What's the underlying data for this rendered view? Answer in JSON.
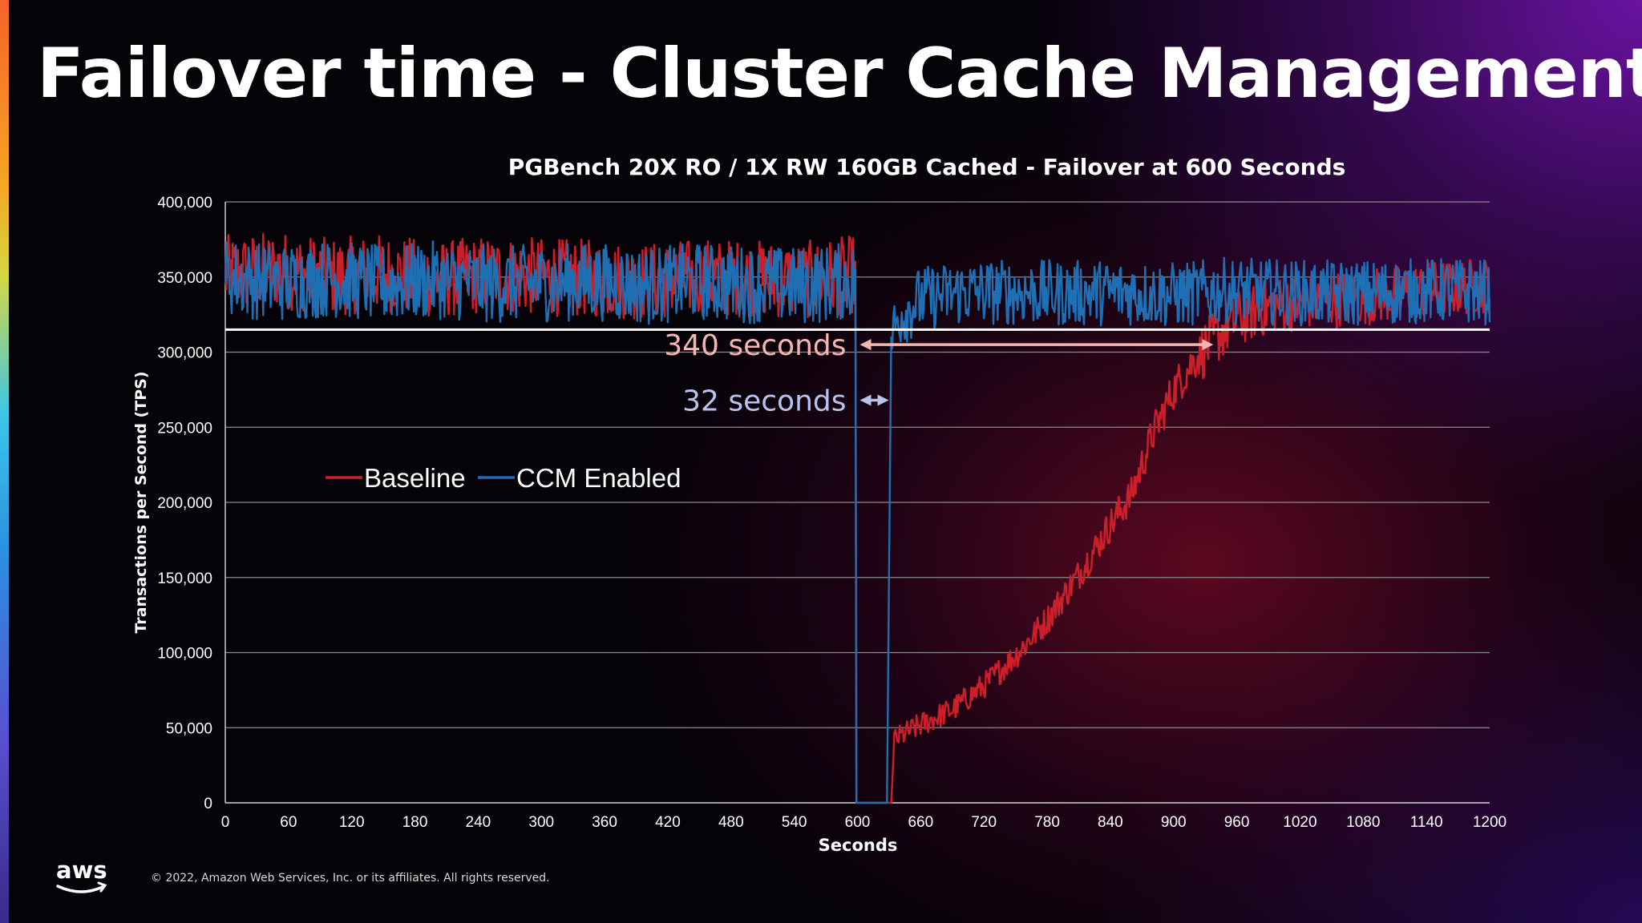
{
  "slide": {
    "title": "Failover time - Cluster Cache Management",
    "copyright": "© 2022, Amazon Web Services, Inc. or its affiliates. All rights reserved.",
    "logo_icon": "aws-logo-icon"
  },
  "chart_data": {
    "type": "line",
    "title": "PGBench 20X RO / 1X RW 160GB Cached - Failover at 600 Seconds",
    "xlabel": "Seconds",
    "ylabel": "Transactions per Second (TPS)",
    "xlim": [
      0,
      1200
    ],
    "ylim": [
      0,
      400000
    ],
    "xticks": [
      "0",
      "60",
      "120",
      "180",
      "240",
      "300",
      "360",
      "420",
      "480",
      "540",
      "600",
      "660",
      "720",
      "780",
      "840",
      "900",
      "960",
      "1020",
      "1080",
      "1140",
      "1200"
    ],
    "yticks": [
      "0",
      "50,000",
      "100,000",
      "150,000",
      "200,000",
      "250,000",
      "300,000",
      "350,000",
      "400,000"
    ],
    "grid": true,
    "legend_position": "middle-left",
    "threshold_line": {
      "y": 315000,
      "color": "#ffffff"
    },
    "series": [
      {
        "name": "Baseline",
        "color": "#cc1f2a",
        "points": [
          [
            0,
            352000
          ],
          [
            50,
            355000
          ],
          [
            100,
            350000
          ],
          [
            150,
            353000
          ],
          [
            200,
            348000
          ],
          [
            250,
            352000
          ],
          [
            300,
            350000
          ],
          [
            350,
            349000
          ],
          [
            400,
            347000
          ],
          [
            450,
            350000
          ],
          [
            500,
            349000
          ],
          [
            550,
            348000
          ],
          [
            598,
            352000
          ],
          [
            600,
            0
          ],
          [
            632,
            0
          ],
          [
            635,
            42000
          ],
          [
            660,
            52000
          ],
          [
            690,
            62000
          ],
          [
            720,
            78000
          ],
          [
            750,
            98000
          ],
          [
            780,
            122000
          ],
          [
            810,
            152000
          ],
          [
            840,
            185000
          ],
          [
            860,
            205000
          ],
          [
            880,
            245000
          ],
          [
            900,
            275000
          ],
          [
            920,
            295000
          ],
          [
            940,
            310000
          ],
          [
            960,
            322000
          ],
          [
            980,
            328000
          ],
          [
            1000,
            332000
          ],
          [
            1050,
            335000
          ],
          [
            1100,
            338000
          ],
          [
            1150,
            342000
          ],
          [
            1200,
            345000
          ]
        ]
      },
      {
        "name": "CCM Enabled",
        "color": "#1f6fb5",
        "points": [
          [
            0,
            350000
          ],
          [
            50,
            346000
          ],
          [
            100,
            349000
          ],
          [
            150,
            345000
          ],
          [
            200,
            348000
          ],
          [
            250,
            345000
          ],
          [
            300,
            346000
          ],
          [
            350,
            347000
          ],
          [
            400,
            344000
          ],
          [
            450,
            347000
          ],
          [
            500,
            345000
          ],
          [
            550,
            344000
          ],
          [
            598,
            348000
          ],
          [
            600,
            0
          ],
          [
            628,
            0
          ],
          [
            632,
            310000
          ],
          [
            640,
            325000
          ],
          [
            660,
            335000
          ],
          [
            700,
            340000
          ],
          [
            750,
            340000
          ],
          [
            800,
            339000
          ],
          [
            850,
            340000
          ],
          [
            900,
            338000
          ],
          [
            950,
            341000
          ],
          [
            1000,
            340000
          ],
          [
            1050,
            339000
          ],
          [
            1100,
            340000
          ],
          [
            1150,
            341000
          ],
          [
            1200,
            340000
          ]
        ]
      }
    ],
    "annotations": [
      {
        "text": "340 seconds",
        "x_start": 600,
        "x_end": 940,
        "y": 305000,
        "color": "#f4b6b3"
      },
      {
        "text": "32 seconds",
        "x_start": 600,
        "x_end": 632,
        "y": 268000,
        "color": "#b7c4ee"
      }
    ]
  }
}
